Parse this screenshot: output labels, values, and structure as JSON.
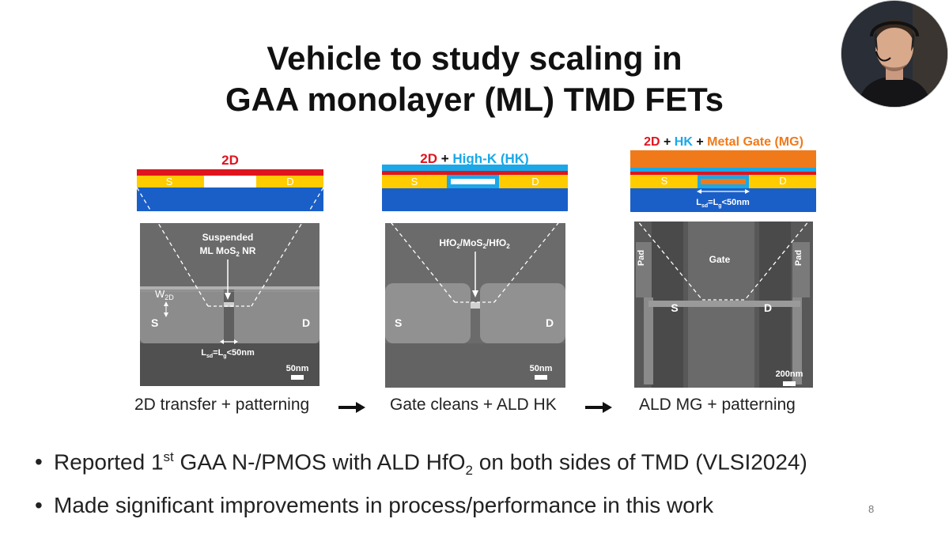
{
  "slide": {
    "title_line1": "Vehicle to study scaling in",
    "title_line2": "GAA monolayer (ML) TMD FETs",
    "page_number": "8"
  },
  "colors": {
    "red": "#e0141e",
    "blue": "#1a5fc8",
    "yellow": "#ffcc00",
    "cyan": "#1aa8e8",
    "orange": "#f07a1a"
  },
  "panels": [
    {
      "header": {
        "part1": "2D"
      },
      "layer_labels": {
        "source": "S",
        "drain": "D"
      },
      "sem": {
        "callout_line1": "Suspended",
        "callout_line2_main": "ML MoS",
        "callout_line2_sub": "2",
        "callout_line2_end": " NR",
        "width_label_main": "W",
        "width_label_sub": "2D",
        "source": "S",
        "drain": "D",
        "length_main": "L",
        "length_sub1": "sd",
        "length_eq": "=L",
        "length_sub2": "g",
        "length_end": "<50nm",
        "scale": "50nm"
      },
      "caption": "2D transfer + patterning"
    },
    {
      "header": {
        "part1": "2D",
        "plus": " + ",
        "part2": "High-K (HK)"
      },
      "layer_labels": {
        "source": "S",
        "drain": "D"
      },
      "sem": {
        "callout_a": "HfO",
        "callout_a_sub": "2",
        "callout_b": "/MoS",
        "callout_b_sub": "2",
        "callout_c": "/HfO",
        "callout_c_sub": "2",
        "source": "S",
        "drain": "D",
        "scale": "50nm"
      },
      "caption": "Gate cleans + ALD HK"
    },
    {
      "header": {
        "part1": "2D",
        "plus1": " + ",
        "part2": "HK",
        "plus2": " + ",
        "part3": "Metal Gate (MG)"
      },
      "layer_labels": {
        "source": "S",
        "drain": "D",
        "length_main": "L",
        "length_sub1": "sd",
        "length_eq": "=L",
        "length_sub2": "g",
        "length_end": "<50nm"
      },
      "sem": {
        "pad_left": "Pad",
        "pad_right": "Pad",
        "gate": "Gate",
        "source": "S",
        "drain": "D",
        "scale": "200nm"
      },
      "caption": "ALD MG + patterning"
    }
  ],
  "bullets": [
    {
      "t1": "Reported 1",
      "sup": "st",
      "t2": " GAA N-/PMOS with ALD HfO",
      "sub": "2",
      "t3": " on both sides of TMD (VLSI2024)"
    },
    {
      "t1": "Made significant improvements in process/performance in this work"
    }
  ]
}
